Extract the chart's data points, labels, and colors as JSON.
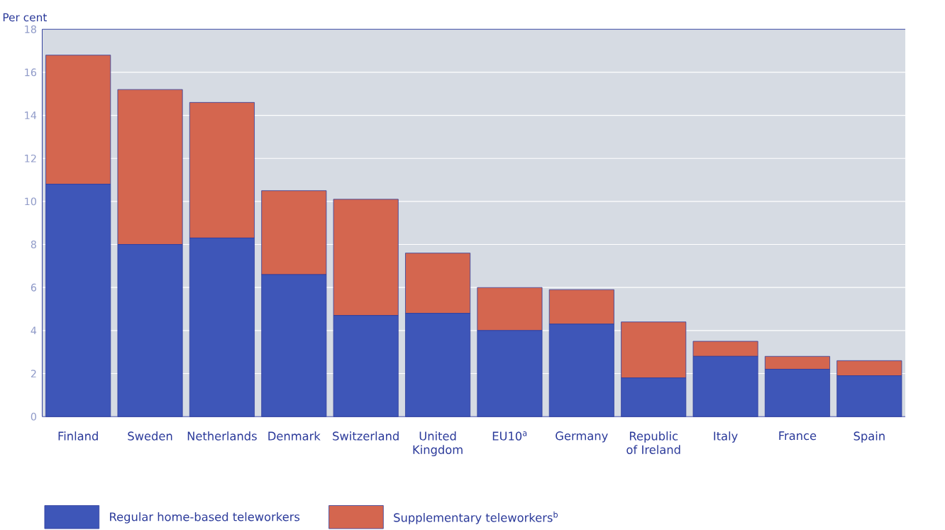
{
  "chart_data": {
    "type": "bar",
    "stacked": true,
    "ylabel": "Per cent",
    "categories": [
      "Finland",
      "Sweden",
      "Netherlands",
      "Denmark",
      "Switzerland",
      "United Kingdom",
      "EU10$^{a}$",
      "Germany",
      "Republic of Ireland",
      "Italy",
      "France",
      "Spain"
    ],
    "series": [
      {
        "name": "Regular home-based teleworkers",
        "color": "#3e56b8",
        "values": [
          10.8,
          8.0,
          8.3,
          6.6,
          4.7,
          4.8,
          4.0,
          4.3,
          1.8,
          2.8,
          2.2,
          1.9
        ]
      },
      {
        "name": "Supplementary teleworkers$^{b}$",
        "color": "#d4664f",
        "values": [
          6.0,
          7.2,
          6.3,
          3.9,
          5.4,
          2.8,
          2.0,
          1.6,
          2.6,
          0.7,
          0.6,
          0.7
        ]
      }
    ],
    "ylim": [
      0,
      18
    ],
    "yticks": [
      0,
      2,
      4,
      6,
      8,
      10,
      12,
      14,
      16,
      18
    ],
    "grid": "y",
    "legend": "bottom left"
  }
}
